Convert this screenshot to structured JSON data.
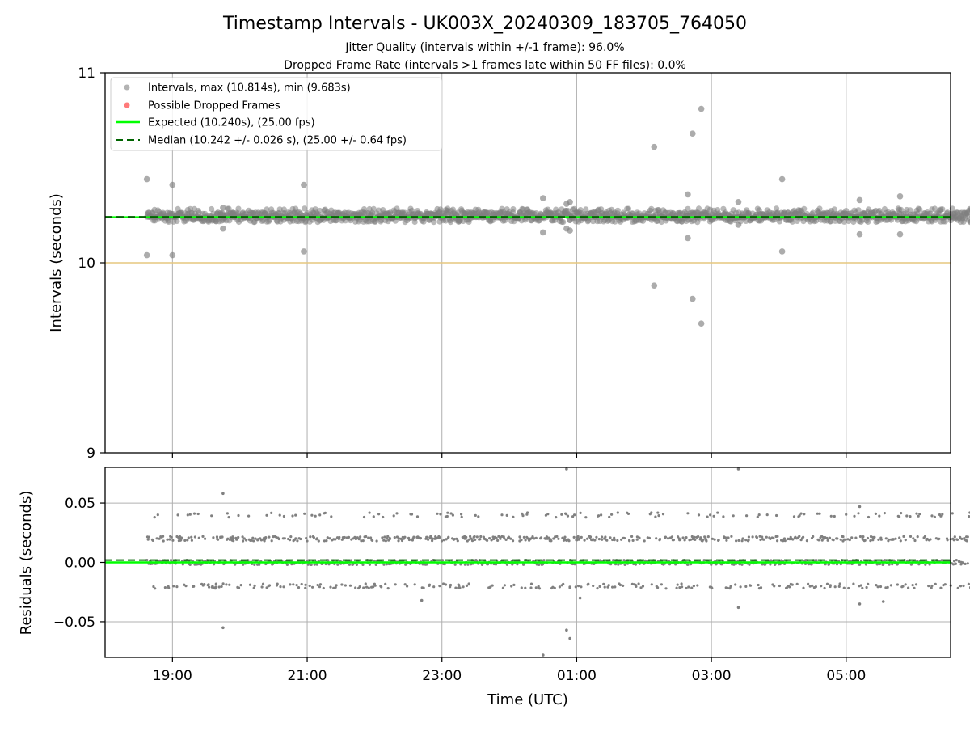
{
  "chart_data": [
    {
      "type": "scatter",
      "title": "Timestamp Intervals - UK003X_20240309_183705_764050",
      "subtitle_1": "Jitter Quality (intervals within +/-1 frame): 96.0%",
      "subtitle_2": "Dropped Frame Rate (intervals >1 frames late within 50 FF files): 0.0%",
      "ylabel": "Intervals (seconds)",
      "xlim_hours": [
        -1.0,
        11.55
      ],
      "ylim": [
        9,
        11
      ],
      "y_ticks": [
        "9",
        "10",
        "11"
      ],
      "grid": true,
      "reference_line_y": 10,
      "legend_placement": "top-left",
      "legend": {
        "intervals": "Intervals, max (10.814s), min (9.683s)",
        "dropped": "Possible Dropped Frames",
        "expected": "Expected (10.240s), (25.00 fps)",
        "median": "Median (10.242 +/- 0.026 s), (25.00 +/- 0.64 fps)"
      },
      "expected_value": 10.24,
      "median_value": 10.242,
      "data_time_range_hours": [
        -0.38,
        11.9
      ],
      "band_values": [
        10.22,
        10.24,
        10.26,
        10.28
      ],
      "outliers": [
        {
          "t": -0.38,
          "v": 10.44
        },
        {
          "t": -0.38,
          "v": 10.04
        },
        {
          "t": -0.0,
          "v": 10.41
        },
        {
          "t": -0.0,
          "v": 10.04
        },
        {
          "t": 0.75,
          "v": 10.29
        },
        {
          "t": 0.75,
          "v": 10.18
        },
        {
          "t": 1.95,
          "v": 10.41
        },
        {
          "t": 1.95,
          "v": 10.06
        },
        {
          "t": 5.5,
          "v": 10.34
        },
        {
          "t": 5.5,
          "v": 10.16
        },
        {
          "t": 5.85,
          "v": 10.31
        },
        {
          "t": 5.9,
          "v": 10.32
        },
        {
          "t": 5.85,
          "v": 10.18
        },
        {
          "t": 5.9,
          "v": 10.17
        },
        {
          "t": 7.15,
          "v": 10.61
        },
        {
          "t": 7.15,
          "v": 9.88
        },
        {
          "t": 7.65,
          "v": 10.36
        },
        {
          "t": 7.65,
          "v": 10.13
        },
        {
          "t": 7.72,
          "v": 10.68
        },
        {
          "t": 7.72,
          "v": 9.81
        },
        {
          "t": 7.85,
          "v": 10.81
        },
        {
          "t": 7.85,
          "v": 9.68
        },
        {
          "t": 8.4,
          "v": 10.32
        },
        {
          "t": 8.4,
          "v": 10.2
        },
        {
          "t": 9.05,
          "v": 10.44
        },
        {
          "t": 9.05,
          "v": 10.06
        },
        {
          "t": 10.2,
          "v": 10.33
        },
        {
          "t": 10.2,
          "v": 10.15
        },
        {
          "t": 10.8,
          "v": 10.35
        },
        {
          "t": 10.8,
          "v": 10.15
        }
      ]
    },
    {
      "type": "scatter",
      "xlabel": "Time (UTC)",
      "ylabel": "Residuals (seconds)",
      "ylim": [
        -0.08,
        0.08
      ],
      "y_ticks": [
        "0.05",
        "0.00",
        "−0.05"
      ],
      "x_ticks": [
        "19:00",
        "21:00",
        "23:00",
        "01:00",
        "03:00",
        "05:00"
      ],
      "grid": true,
      "expected_value": 0.0,
      "median_value": 0.002,
      "band_values": [
        -0.02,
        0.0,
        0.02,
        0.04
      ],
      "outliers": [
        {
          "t": 0.75,
          "v": 0.058
        },
        {
          "t": 0.75,
          "v": -0.055
        },
        {
          "t": 5.85,
          "v": 0.085
        },
        {
          "t": 5.85,
          "v": -0.057
        },
        {
          "t": 5.9,
          "v": -0.064
        },
        {
          "t": 5.5,
          "v": -0.078
        },
        {
          "t": 8.4,
          "v": 0.085
        },
        {
          "t": 8.4,
          "v": -0.038
        },
        {
          "t": 10.2,
          "v": 0.047
        },
        {
          "t": 10.2,
          "v": -0.035
        },
        {
          "t": 10.55,
          "v": -0.033
        },
        {
          "t": 3.7,
          "v": -0.032
        },
        {
          "t": 6.05,
          "v": -0.03
        }
      ]
    }
  ],
  "colors": {
    "points": "#808080",
    "dropped": "#ff6b6b",
    "expected": "#00ff00",
    "median": "#006400",
    "reference": "#e6c77f",
    "grid": "#b0b0b0"
  }
}
